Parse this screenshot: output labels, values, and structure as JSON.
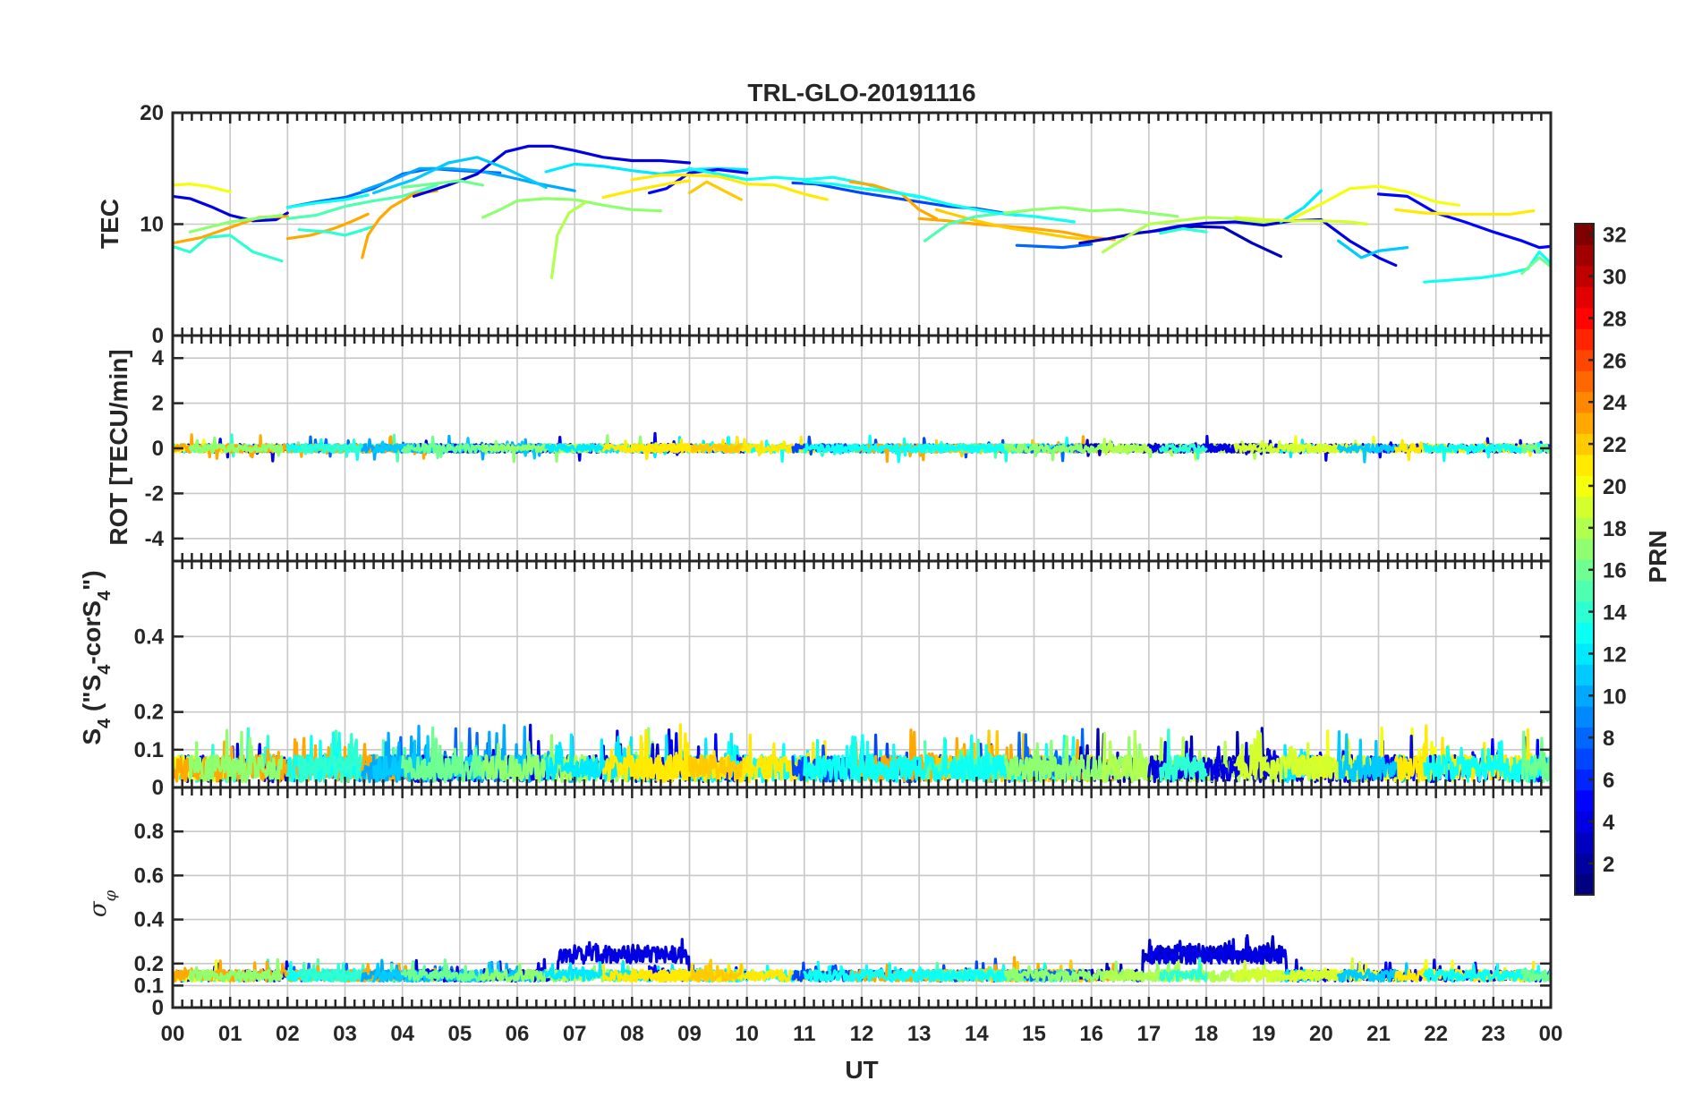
{
  "chart_data": {
    "type": "line",
    "title": "TRL-GLO-20191116",
    "xlabel": "UT",
    "x_ticks": [
      "00",
      "01",
      "02",
      "03",
      "04",
      "05",
      "06",
      "07",
      "08",
      "09",
      "10",
      "11",
      "12",
      "13",
      "14",
      "15",
      "16",
      "17",
      "18",
      "19",
      "20",
      "21",
      "22",
      "23",
      "00"
    ],
    "xlim": [
      0,
      24
    ],
    "grid": true,
    "panels": [
      {
        "id": "tec",
        "ylabel": "TEC",
        "ylim": [
          0,
          20
        ],
        "y_ticks": [
          0,
          10,
          20
        ],
        "series": [
          {
            "prn": 4,
            "x": [
              0.0,
              0.3,
              0.7,
              1.0,
              1.4,
              1.8,
              2.0
            ],
            "y": [
              12.5,
              12.3,
              11.5,
              10.8,
              10.3,
              10.4,
              11.0
            ]
          },
          {
            "prn": 14,
            "x": [
              0.0,
              0.3,
              0.6,
              1.0,
              1.4,
              1.9
            ],
            "y": [
              8.0,
              7.5,
              8.8,
              9.0,
              7.5,
              6.7
            ]
          },
          {
            "prn": 20,
            "x": [
              0.0,
              0.3,
              0.6,
              1.0
            ],
            "y": [
              13.5,
              13.6,
              13.4,
              12.9
            ]
          },
          {
            "prn": 23,
            "x": [
              0.0,
              0.5,
              1.0,
              1.5,
              2.0
            ],
            "y": [
              8.3,
              8.8,
              9.7,
              10.6,
              10.7
            ]
          },
          {
            "prn": 17,
            "x": [
              0.3,
              1.0,
              1.6,
              1.9
            ],
            "y": [
              9.3,
              10.2,
              10.6,
              10.8
            ]
          },
          {
            "prn": 8,
            "x": [
              2.0,
              2.5,
              3.0,
              3.5,
              4.0,
              4.5,
              5.0,
              5.7
            ],
            "y": [
              11.5,
              12.0,
              12.4,
              13.2,
              14.5,
              15.0,
              14.8,
              14.6
            ]
          },
          {
            "prn": 15,
            "x": [
              2.0,
              2.5,
              3.0,
              3.5,
              4.0,
              4.6
            ],
            "y": [
              10.5,
              10.8,
              11.6,
              12.1,
              12.5,
              13.5
            ]
          },
          {
            "prn": 23,
            "x": [
              2.0,
              2.4,
              2.8,
              3.1,
              3.4
            ],
            "y": [
              8.7,
              9.0,
              9.6,
              10.2,
              10.9
            ]
          },
          {
            "prn": 13,
            "x": [
              2.0,
              2.5,
              3.0,
              3.2,
              3.4
            ],
            "y": [
              11.5,
              11.9,
              12.2,
              12.4,
              12.6
            ]
          },
          {
            "prn": 14,
            "x": [
              2.2,
              2.7,
              3.0,
              3.2,
              3.5
            ],
            "y": [
              9.5,
              9.3,
              9.0,
              9.3,
              9.8
            ]
          },
          {
            "prn": 23,
            "x": [
              3.3,
              3.4,
              3.6,
              3.8,
              4.2,
              4.6
            ],
            "y": [
              7.0,
              9.0,
              10.5,
              11.5,
              12.7,
              13.0
            ]
          },
          {
            "prn": 10,
            "x": [
              3.3,
              3.8,
              4.3,
              4.8,
              5.3,
              5.8,
              6.3,
              7.0
            ],
            "y": [
              13.0,
              13.9,
              15.0,
              15.0,
              14.8,
              14.3,
              13.7,
              13.0
            ]
          },
          {
            "prn": 4,
            "x": [
              4.2,
              4.8,
              5.3,
              5.8,
              6.2,
              6.6,
              7.0,
              7.5,
              8.0,
              8.5,
              9.0
            ],
            "y": [
              12.5,
              13.5,
              14.5,
              16.5,
              17.0,
              17.0,
              16.6,
              16.0,
              15.7,
              15.7,
              15.5
            ]
          },
          {
            "prn": 11,
            "x": [
              3.5,
              4.2,
              4.8,
              5.3,
              5.8,
              6.5
            ],
            "y": [
              12.8,
              14.0,
              15.5,
              16.0,
              15.0,
              13.3
            ]
          },
          {
            "prn": 16,
            "x": [
              4.0,
              4.5,
              5.0,
              5.4
            ],
            "y": [
              13.3,
              13.6,
              13.9,
              13.5
            ]
          },
          {
            "prn": 17,
            "x": [
              5.4,
              5.7,
              6.0,
              6.5,
              7.0,
              7.5,
              8.0,
              8.5
            ],
            "y": [
              10.6,
              11.3,
              12.1,
              12.3,
              12.2,
              11.7,
              11.3,
              11.2
            ]
          },
          {
            "prn": 18,
            "x": [
              6.6,
              6.7,
              6.9,
              7.2
            ],
            "y": [
              5.2,
              9.0,
              11.0,
              12.0
            ]
          },
          {
            "prn": 12,
            "x": [
              6.5,
              7.0,
              7.5,
              8.0,
              8.5,
              9.0,
              9.5,
              10.0
            ],
            "y": [
              14.7,
              15.4,
              15.2,
              14.8,
              14.5,
              14.9,
              15.0,
              14.9
            ]
          },
          {
            "prn": 5,
            "x": [
              8.3,
              8.6,
              9.0,
              9.5,
              10.0
            ],
            "y": [
              12.8,
              13.2,
              14.6,
              14.9,
              14.6
            ]
          },
          {
            "prn": 13,
            "x": [
              9.0,
              9.5,
              10.0,
              10.5,
              11.0,
              11.5,
              12.0,
              12.5,
              13.0
            ],
            "y": [
              15.0,
              14.5,
              14.0,
              14.2,
              14.0,
              14.2,
              13.7,
              13.0,
              12.4
            ]
          },
          {
            "prn": 21,
            "x": [
              8.0,
              8.5,
              9.0,
              9.5,
              10.0,
              10.5,
              11.0,
              11.4
            ],
            "y": [
              14.0,
              14.4,
              14.4,
              14.3,
              13.6,
              13.5,
              12.7,
              12.2
            ]
          },
          {
            "prn": 22,
            "x": [
              9.0,
              9.3,
              9.6,
              9.9
            ],
            "y": [
              12.8,
              13.8,
              13.0,
              12.2
            ]
          },
          {
            "prn": 21,
            "x": [
              7.5,
              8.0,
              8.6,
              9.0
            ],
            "y": [
              12.4,
              13.0,
              13.6,
              13.9
            ]
          },
          {
            "prn": 7,
            "x": [
              10.8,
              11.2,
              11.6,
              12.0,
              12.5,
              13.0,
              13.5,
              14.0,
              14.7
            ],
            "y": [
              13.7,
              13.6,
              13.2,
              12.8,
              12.4,
              12.0,
              11.6,
              11.4,
              10.8
            ]
          },
          {
            "prn": 23,
            "x": [
              11.8,
              12.2,
              12.7,
              13.0,
              13.3
            ],
            "y": [
              13.8,
              13.5,
              12.7,
              11.3,
              10.5
            ]
          },
          {
            "prn": 23,
            "x": [
              13.0,
              13.5,
              14.0,
              14.5,
              15.0,
              15.5,
              16.0,
              16.4
            ],
            "y": [
              10.5,
              10.3,
              10.0,
              9.8,
              9.6,
              9.3,
              8.8,
              8.6
            ]
          },
          {
            "prn": 22,
            "x": [
              13.3,
              13.5,
              14.0,
              14.5,
              15.0,
              15.6,
              16.0
            ],
            "y": [
              11.3,
              11.0,
              10.3,
              9.7,
              9.3,
              8.8,
              8.6
            ]
          },
          {
            "prn": 15,
            "x": [
              13.1,
              13.5,
              14.0,
              14.5
            ],
            "y": [
              8.5,
              10.0,
              10.7,
              11.0
            ]
          },
          {
            "prn": 13,
            "x": [
              11.0,
              11.5,
              12.0,
              12.5,
              13.0,
              13.5,
              14.0,
              14.5,
              15.0,
              15.7
            ],
            "y": [
              13.8,
              13.6,
              13.2,
              12.9,
              12.5,
              11.8,
              11.3,
              10.9,
              10.7,
              10.2
            ]
          },
          {
            "prn": 8,
            "x": [
              14.7,
              15.1,
              15.5,
              16.0
            ],
            "y": [
              8.1,
              8.0,
              7.9,
              8.2
            ]
          },
          {
            "prn": 3,
            "x": [
              15.8,
              16.3,
              16.8,
              17.3,
              17.8,
              18.3,
              18.8,
              19.3
            ],
            "y": [
              8.3,
              8.7,
              9.2,
              9.5,
              9.8,
              9.7,
              8.3,
              7.1
            ]
          },
          {
            "prn": 17,
            "x": [
              14.5,
              15.0,
              15.5,
              16.0,
              16.5,
              17.0,
              17.5
            ],
            "y": [
              11.0,
              11.3,
              11.5,
              11.2,
              11.3,
              11.0,
              10.7
            ]
          },
          {
            "prn": 18,
            "x": [
              16.2,
              16.6,
              17.0,
              17.5,
              18.0,
              18.5,
              19.0,
              19.5
            ],
            "y": [
              7.5,
              8.8,
              10.0,
              10.3,
              10.6,
              10.5,
              10.1,
              10.3
            ]
          },
          {
            "prn": 4,
            "x": [
              17.0,
              17.5,
              18.0,
              18.5,
              19.0,
              19.5,
              20.0,
              20.5,
              21.0,
              21.3
            ],
            "y": [
              9.3,
              9.8,
              10.1,
              10.2,
              9.9,
              10.3,
              10.4,
              8.5,
              7.0,
              6.3
            ]
          },
          {
            "prn": 14,
            "x": [
              17.2,
              17.6,
              18.0
            ],
            "y": [
              9.2,
              9.6,
              9.3
            ]
          },
          {
            "prn": 12,
            "x": [
              19.3,
              19.7,
              20.0
            ],
            "y": [
              10.2,
              11.5,
              13.0
            ]
          },
          {
            "prn": 20,
            "x": [
              19.5,
              20.0,
              20.5,
              21.0,
              21.5,
              22.0,
              22.4
            ],
            "y": [
              10.5,
              11.8,
              13.2,
              13.4,
              12.9,
              12.0,
              11.7
            ]
          },
          {
            "prn": 19,
            "x": [
              18.5,
              19.0,
              19.5,
              20.0,
              20.5,
              20.8
            ],
            "y": [
              10.6,
              10.4,
              10.3,
              10.3,
              10.2,
              10.0
            ]
          },
          {
            "prn": 5,
            "x": [
              21.0,
              21.5,
              22.0,
              22.5,
              23.0,
              23.5,
              23.8,
              24.0
            ],
            "y": [
              12.7,
              12.5,
              11.0,
              10.2,
              9.3,
              8.5,
              7.9,
              8.0
            ]
          },
          {
            "prn": 11,
            "x": [
              20.3,
              20.7,
              21.0,
              21.5
            ],
            "y": [
              8.5,
              7.0,
              7.6,
              7.9
            ]
          },
          {
            "prn": 21,
            "x": [
              21.3,
              21.8,
              22.3,
              22.8,
              23.3,
              23.7
            ],
            "y": [
              11.3,
              11.0,
              10.9,
              10.9,
              10.9,
              11.2
            ]
          },
          {
            "prn": 13,
            "x": [
              21.8,
              22.3,
              22.8,
              23.2,
              23.6,
              23.8,
              24.0
            ],
            "y": [
              4.8,
              5.0,
              5.2,
              5.5,
              6.0,
              7.5,
              6.5
            ]
          },
          {
            "prn": 16,
            "x": [
              23.5,
              23.8,
              24.0
            ],
            "y": [
              5.6,
              7.0,
              6.2
            ]
          }
        ]
      },
      {
        "id": "rot",
        "ylabel": "ROT [TECU/min]",
        "ylim": [
          -5,
          5
        ],
        "y_ticks": [
          -4,
          -2,
          0,
          2,
          4
        ]
      },
      {
        "id": "s4",
        "ylabel": "S4 (\"S4-corS4\")",
        "ylim": [
          0,
          0.6
        ],
        "y_ticks": [
          0,
          0.1,
          0.2,
          0.4
        ]
      },
      {
        "id": "sigma",
        "ylabel": "σφ",
        "ylim": [
          0,
          1
        ],
        "y_ticks": [
          0,
          0.1,
          0.2,
          0.4,
          0.6,
          0.8
        ]
      }
    ],
    "colorbar": {
      "label": "PRN",
      "range": [
        1,
        32
      ],
      "ticks": [
        2,
        4,
        6,
        8,
        10,
        12,
        14,
        16,
        18,
        20,
        22,
        24,
        26,
        28,
        30,
        32
      ],
      "colormap": "jet"
    }
  },
  "labels": {
    "title": "TRL-GLO-20191116",
    "xlabel": "UT",
    "tec_ylabel": "TEC",
    "rot_ylabel": "ROT [TECU/min]",
    "s4_main": "S",
    "s4_sub": "4",
    "s4_paren_open": " (\"S",
    "s4_sub2": "4",
    "s4_mid": "-corS",
    "s4_sub3": "4",
    "s4_close": "\")",
    "sigma_main": "σ",
    "sigma_sub": "φ",
    "colorbar_label": "PRN"
  }
}
